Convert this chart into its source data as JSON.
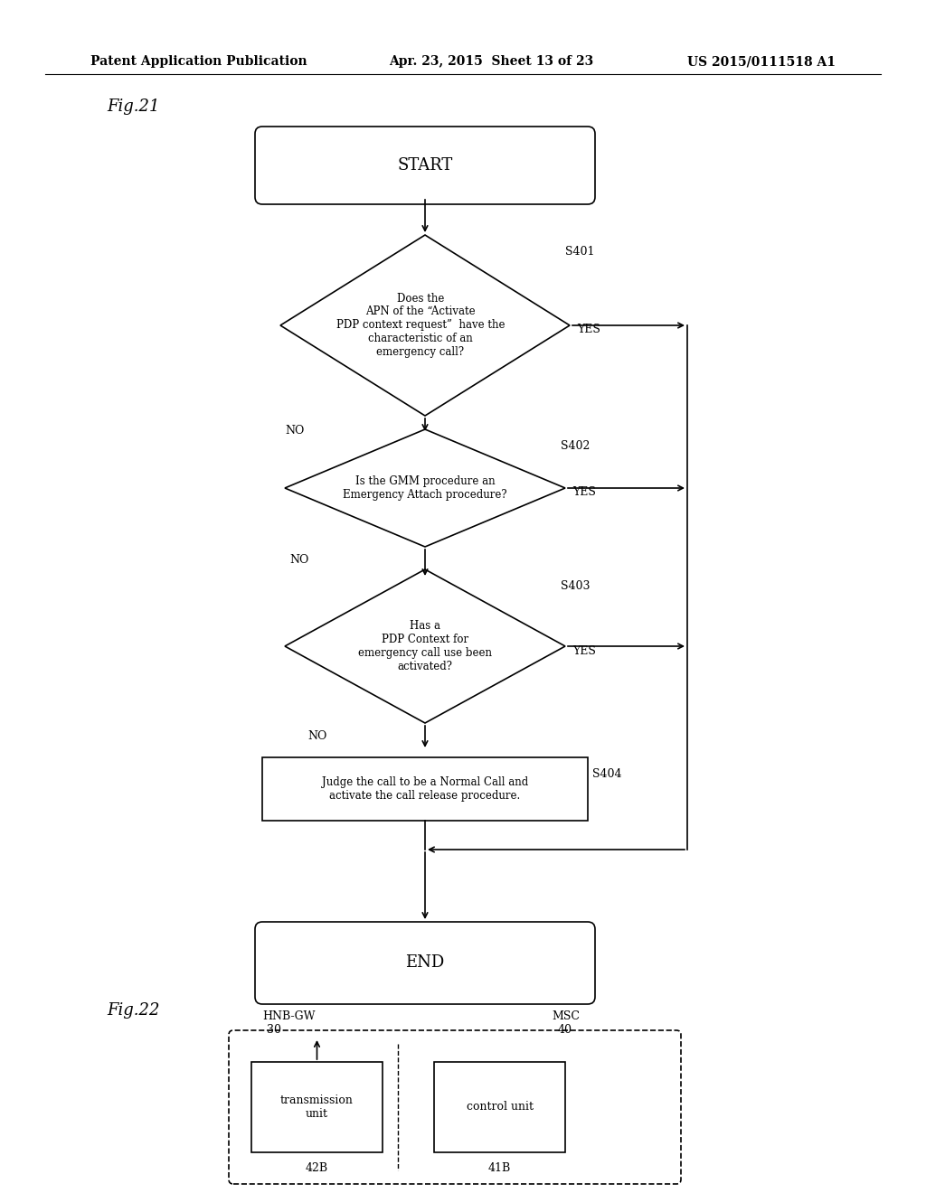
{
  "header_left": "Patent Application Publication",
  "header_mid": "Apr. 23, 2015  Sheet 13 of 23",
  "header_right": "US 2015/0111518 A1",
  "fig21_label": "Fig.21",
  "fig22_label": "Fig.22",
  "start_text": "START",
  "end_text": "END",
  "d1_text": "Does the\nAPN of the “Activate\nPDP context request”  have the\ncharacteristic of an\nemergency call?",
  "d1_label": "S401",
  "d2_text": "Is the GMM procedure an\nEmergency Attach procedure?",
  "d2_label": "S402",
  "d3_text": "Has a\nPDP Context for\nemergency call use been\nactivated?",
  "d3_label": "S403",
  "rect_text": "Judge the call to be a Normal Call and\nactivate the call release procedure.",
  "rect_label": "S404",
  "yes_text": "YES",
  "no_text": "NO",
  "fig22_outer_label": "HNB-GW\n30",
  "fig22_msc_label": "MSC\n40",
  "fig22_box1_label": "42B",
  "fig22_box1_text": "transmission\nunit",
  "fig22_box2_label": "41B",
  "fig22_box2_text": "control unit",
  "bg_color": "#ffffff",
  "line_color": "#000000",
  "text_color": "#000000"
}
